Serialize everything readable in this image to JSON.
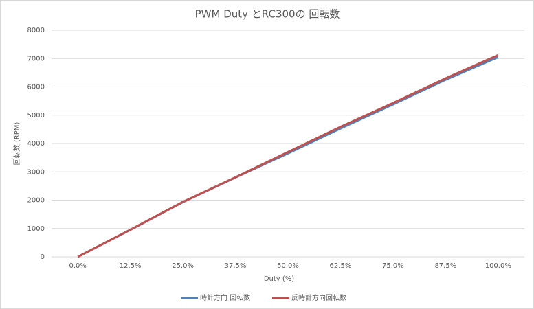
{
  "chart_data": {
    "type": "line",
    "title": "PWM Duty とRC300の 回転数",
    "x_label": "Duty (%)",
    "y_label": "回転数 (RPM)",
    "categories": [
      "0.0%",
      "12.5%",
      "25.0%",
      "37.5%",
      "50.0%",
      "62.5%",
      "75.0%",
      "87.5%",
      "100.0%"
    ],
    "series": [
      {
        "name": "時計方向 回転数",
        "color": "#4f81bd",
        "values": [
          0,
          950,
          1930,
          2800,
          3650,
          4530,
          5380,
          6250,
          7050
        ]
      },
      {
        "name": "反時計方向回転数",
        "color": "#c0504d",
        "values": [
          0,
          960,
          1940,
          2810,
          3700,
          4590,
          5430,
          6300,
          7120
        ]
      }
    ],
    "ylim": [
      0,
      8000
    ],
    "yticks": [
      0,
      1000,
      2000,
      3000,
      4000,
      5000,
      6000,
      7000,
      8000
    ],
    "grid": true,
    "legend": "bottom"
  }
}
